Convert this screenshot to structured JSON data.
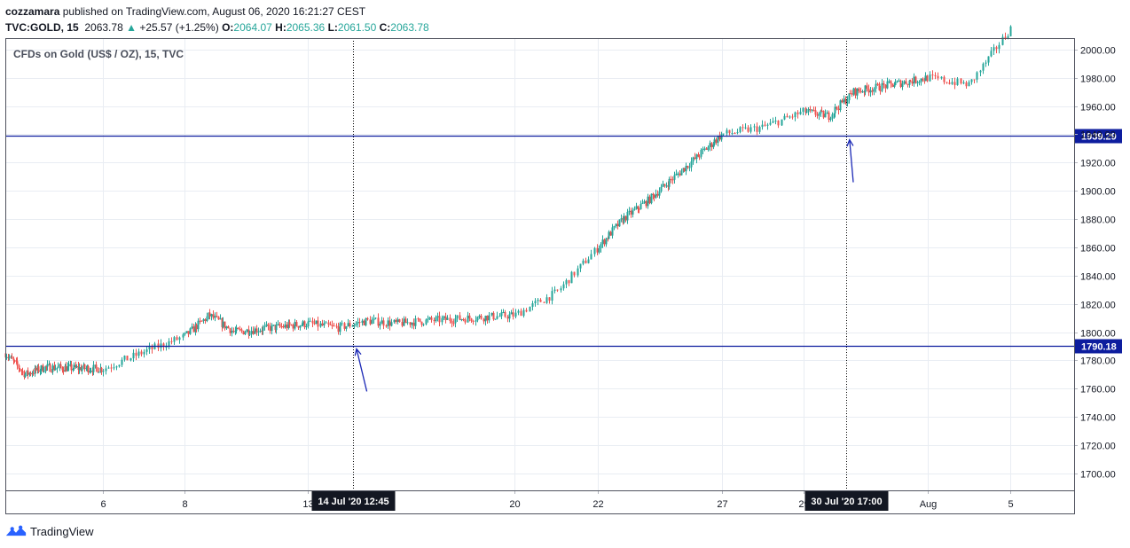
{
  "header": {
    "author": "cozzamara",
    "published_text": "published on TradingView.com, August 06, 2020 16:21:27 CEST",
    "symbol": "TVC:GOLD, 15",
    "last": "2063.78",
    "change_icon": "up-triangle-icon",
    "change": "+25.57 (+1.25%)",
    "o_label": "O:",
    "o_value": "2064.07",
    "h_label": "H:",
    "h_value": "2065.36",
    "l_label": "L:",
    "l_value": "2061.50",
    "c_label": "C:",
    "c_value": "2063.78"
  },
  "footer": {
    "brand": "TradingView",
    "logo_icon": "tradingview-logo-icon"
  },
  "colors": {
    "up": "#26a69a",
    "down": "#ef5350",
    "hline": "#0d1d9e",
    "arrow": "#1b29b6",
    "grid": "#e9edf3"
  },
  "chart_data": {
    "type": "candlestick",
    "title": "CFDs on Gold (US$ / OZ), 15, TVC",
    "ylim": [
      1688,
      2008
    ],
    "yticks": [
      1700,
      1720,
      1740,
      1760,
      1780,
      1800,
      1820,
      1840,
      1860,
      1880,
      1900,
      1920,
      1940,
      1960,
      1980,
      2000
    ],
    "ytick_labels": [
      "1700.00",
      "1720.00",
      "1740.00",
      "1760.00",
      "1780.00",
      "1800.00",
      "1820.00",
      "1840.00",
      "1860.00",
      "1880.00",
      "1900.00",
      "1920.00",
      "1940.00",
      "1960.00",
      "1980.00",
      "2000.00"
    ],
    "x_range": [
      "2020-07-01",
      "2020-08-06"
    ],
    "xticks": [
      "2020-07-06",
      "2020-07-08",
      "2020-07-13",
      "2020-07-20",
      "2020-07-22",
      "2020-07-27",
      "2020-07-29",
      "2020-08-03",
      "2020-08-05"
    ],
    "xtick_labels": [
      "6",
      "8",
      "13",
      "20",
      "22",
      "27",
      "29",
      "Aug",
      "5"
    ],
    "price_trace": [
      {
        "x": "2020-07-01",
        "y": 1785
      },
      {
        "x": "2020-07-02",
        "y": 1770
      },
      {
        "x": "2020-07-03",
        "y": 1775
      },
      {
        "x": "2020-07-06",
        "y": 1774
      },
      {
        "x": "2020-07-07",
        "y": 1786
      },
      {
        "x": "2020-07-08",
        "y": 1797
      },
      {
        "x": "2020-07-09",
        "y": 1812
      },
      {
        "x": "2020-07-10",
        "y": 1800
      },
      {
        "x": "2020-07-13",
        "y": 1806
      },
      {
        "x": "2020-07-14",
        "y": 1803
      },
      {
        "x": "2020-07-15",
        "y": 1808
      },
      {
        "x": "2020-07-16",
        "y": 1806
      },
      {
        "x": "2020-07-17",
        "y": 1808
      },
      {
        "x": "2020-07-20",
        "y": 1812
      },
      {
        "x": "2020-07-21",
        "y": 1828
      },
      {
        "x": "2020-07-22",
        "y": 1860
      },
      {
        "x": "2020-07-23",
        "y": 1880
      },
      {
        "x": "2020-07-24",
        "y": 1893
      },
      {
        "x": "2020-07-27",
        "y": 1940
      },
      {
        "x": "2020-07-28",
        "y": 1945
      },
      {
        "x": "2020-07-29",
        "y": 1956
      },
      {
        "x": "2020-07-30",
        "y": 1953
      },
      {
        "x": "2020-07-31",
        "y": 1970
      },
      {
        "x": "2020-08-03",
        "y": 1980
      },
      {
        "x": "2020-08-04",
        "y": 1975
      },
      {
        "x": "2020-08-05",
        "y": 2015
      }
    ],
    "horizontal_lines": [
      {
        "value": 1939.29,
        "label": "1939.29"
      },
      {
        "value": 1790.18,
        "label": "1790.18"
      }
    ],
    "crosshairs": [
      {
        "x": "2020-07-14 12:45",
        "label": "14 Jul '20   12:45"
      },
      {
        "x": "2020-07-30 17:00",
        "label": "30 Jul '20   17:00"
      }
    ],
    "arrows": [
      {
        "at_x": "2020-07-14 12:45",
        "at_y": 1790,
        "from_x": "2020-07-15",
        "from_y": 1758
      },
      {
        "at_x": "2020-07-30 17:00",
        "at_y": 1938,
        "from_x": "2020-07-31",
        "from_y": 1906
      }
    ]
  }
}
